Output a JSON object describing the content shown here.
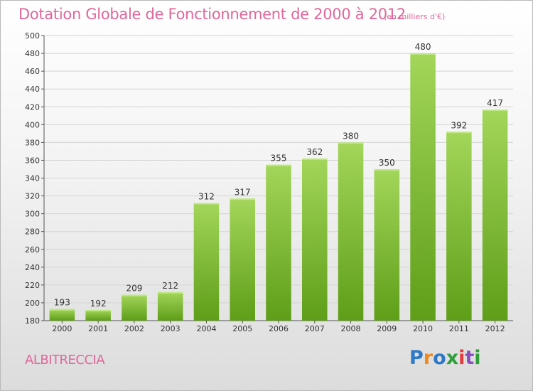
{
  "title": "Dotation Globale de Fonctionnement de 2000 à 2012",
  "unit_note": "(en milliers d'€)",
  "commune": "ALBITRECCIA",
  "logo": {
    "letters": [
      "P",
      "r",
      "o",
      "x",
      "i",
      "t",
      "i"
    ],
    "colors": [
      "#2e78c8",
      "#ef8a1f",
      "#2e78c8",
      "#2e9e3a",
      "#e43a3a",
      "#8a4fbf",
      "#2e9e3a"
    ]
  },
  "colors": {
    "title": "#e0679a",
    "bar_top": "#a3d65a",
    "bar_bottom": "#5e9e18",
    "grid": "#d4d4d4"
  },
  "chart_data": {
    "type": "bar",
    "title": "Dotation Globale de Fonctionnement de 2000 à 2012",
    "subtitle": "(en milliers d'€)",
    "xlabel": "",
    "ylabel": "",
    "categories": [
      "2000",
      "2001",
      "2002",
      "2003",
      "2004",
      "2005",
      "2006",
      "2007",
      "2008",
      "2009",
      "2010",
      "2011",
      "2012"
    ],
    "values": [
      193,
      192,
      209,
      212,
      312,
      317,
      355,
      362,
      380,
      350,
      480,
      392,
      417
    ],
    "ylim": [
      180,
      500
    ],
    "yticks": [
      180,
      200,
      220,
      240,
      260,
      280,
      300,
      320,
      340,
      360,
      380,
      400,
      420,
      440,
      460,
      480,
      500
    ],
    "grid": true,
    "data_labels": true
  }
}
